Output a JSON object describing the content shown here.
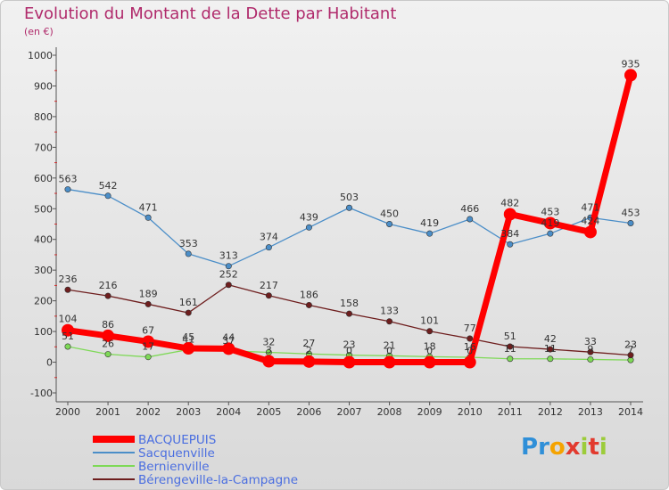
{
  "title": "Evolution du Montant de la Dette par Habitant",
  "subtitle": "(en €)",
  "logo_text": "Proxiti",
  "chart_data": {
    "type": "line",
    "x": [
      2000,
      2001,
      2002,
      2003,
      2004,
      2005,
      2006,
      2007,
      2008,
      2009,
      2010,
      2011,
      2012,
      2013,
      2014
    ],
    "ylim": [
      -100,
      1000
    ],
    "yticks": [
      -100,
      0,
      100,
      200,
      300,
      400,
      500,
      600,
      700,
      800,
      900,
      1000
    ],
    "grid": false,
    "legend_position": "bottom-left",
    "series": [
      {
        "name": "BACQUEPUIS",
        "color": "#ff0000",
        "values": [
          104,
          86,
          67,
          45,
          44,
          3,
          2,
          0,
          0,
          0,
          0,
          482,
          453,
          424,
          935
        ],
        "labels": [
          "104",
          "86",
          "67",
          "45",
          "44",
          "3",
          "2",
          "0",
          "0",
          "0",
          "0",
          "482",
          "453",
          "424",
          "935"
        ]
      },
      {
        "name": "Sacquenville",
        "color": "#4b8ec8",
        "values": [
          563,
          542,
          471,
          353,
          313,
          374,
          439,
          503,
          450,
          419,
          466,
          384,
          419,
          471,
          453
        ],
        "labels": [
          "563",
          "542",
          "471",
          "353",
          "313",
          "374",
          "439",
          "503",
          "450",
          "419",
          "466",
          "384",
          "419",
          "471",
          "453"
        ]
      },
      {
        "name": "Bernienville",
        "color": "#7ed957",
        "values": [
          51,
          26,
          17,
          41,
          37,
          32,
          27,
          23,
          21,
          18,
          16,
          11,
          11,
          9,
          7
        ],
        "labels": [
          "51",
          "26",
          "17",
          "41",
          "37",
          "32",
          "27",
          "23",
          "21",
          "18",
          "16",
          "11",
          "11",
          "9",
          "7"
        ]
      },
      {
        "name": "Bérengeville-la-Campagne",
        "color": "#6e1e1e",
        "values": [
          236,
          216,
          189,
          161,
          252,
          217,
          186,
          158,
          133,
          101,
          77,
          51,
          42,
          33,
          23
        ],
        "labels": [
          "236",
          "216",
          "189",
          "161",
          "252",
          "217",
          "186",
          "158",
          "133",
          "101",
          "77",
          "51",
          "42",
          "33",
          "23"
        ]
      }
    ]
  }
}
